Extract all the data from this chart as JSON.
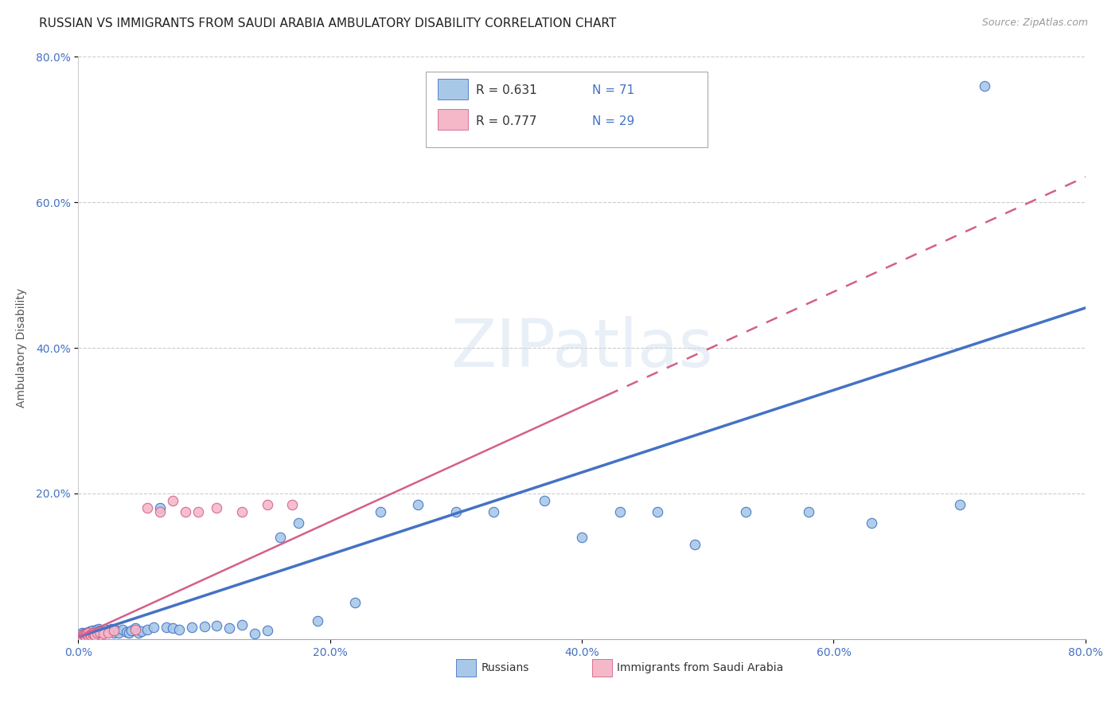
{
  "title": "RUSSIAN VS IMMIGRANTS FROM SAUDI ARABIA AMBULATORY DISABILITY CORRELATION CHART",
  "source": "Source: ZipAtlas.com",
  "ylabel": "Ambulatory Disability",
  "xlim": [
    0,
    0.8
  ],
  "ylim": [
    0,
    0.8
  ],
  "xtick_labels": [
    "0.0%",
    "20.0%",
    "40.0%",
    "60.0%",
    "80.0%"
  ],
  "xtick_vals": [
    0.0,
    0.2,
    0.4,
    0.6,
    0.8
  ],
  "ytick_labels": [
    "20.0%",
    "40.0%",
    "60.0%",
    "80.0%"
  ],
  "ytick_vals": [
    0.2,
    0.4,
    0.6,
    0.8
  ],
  "watermark": "ZIPatlas",
  "blue_color": "#a8c8e8",
  "pink_color": "#f4b8c8",
  "line_blue": "#4472c4",
  "line_pink": "#d4608a",
  "title_fontsize": 11,
  "axis_label_fontsize": 10,
  "tick_fontsize": 10,
  "legend_fontsize": 12,
  "watermark_fontsize": 60,
  "blue_x": [
    0.002,
    0.003,
    0.004,
    0.004,
    0.005,
    0.005,
    0.006,
    0.006,
    0.007,
    0.007,
    0.008,
    0.008,
    0.009,
    0.009,
    0.01,
    0.01,
    0.011,
    0.012,
    0.012,
    0.013,
    0.014,
    0.015,
    0.016,
    0.017,
    0.018,
    0.019,
    0.02,
    0.022,
    0.024,
    0.026,
    0.028,
    0.03,
    0.032,
    0.035,
    0.038,
    0.04,
    0.042,
    0.045,
    0.048,
    0.05,
    0.055,
    0.06,
    0.065,
    0.07,
    0.075,
    0.08,
    0.09,
    0.1,
    0.11,
    0.12,
    0.13,
    0.14,
    0.15,
    0.16,
    0.175,
    0.19,
    0.22,
    0.24,
    0.27,
    0.3,
    0.33,
    0.37,
    0.4,
    0.43,
    0.46,
    0.49,
    0.53,
    0.58,
    0.63,
    0.7,
    0.72
  ],
  "blue_y": [
    0.005,
    0.008,
    0.003,
    0.007,
    0.004,
    0.006,
    0.009,
    0.005,
    0.008,
    0.006,
    0.01,
    0.007,
    0.009,
    0.011,
    0.006,
    0.008,
    0.012,
    0.007,
    0.009,
    0.01,
    0.013,
    0.009,
    0.014,
    0.012,
    0.01,
    0.011,
    0.008,
    0.013,
    0.01,
    0.014,
    0.009,
    0.012,
    0.008,
    0.013,
    0.01,
    0.009,
    0.012,
    0.015,
    0.008,
    0.011,
    0.013,
    0.016,
    0.18,
    0.016,
    0.015,
    0.013,
    0.016,
    0.017,
    0.018,
    0.015,
    0.019,
    0.007,
    0.012,
    0.14,
    0.16,
    0.025,
    0.05,
    0.175,
    0.185,
    0.175,
    0.175,
    0.19,
    0.14,
    0.175,
    0.175,
    0.13,
    0.175,
    0.175,
    0.16,
    0.185,
    0.76
  ],
  "pink_x": [
    0.002,
    0.003,
    0.004,
    0.005,
    0.006,
    0.006,
    0.007,
    0.008,
    0.008,
    0.009,
    0.01,
    0.011,
    0.012,
    0.013,
    0.015,
    0.017,
    0.02,
    0.024,
    0.028,
    0.045,
    0.055,
    0.065,
    0.075,
    0.085,
    0.095,
    0.11,
    0.13,
    0.15,
    0.17
  ],
  "pink_y": [
    0.004,
    0.003,
    0.006,
    0.005,
    0.002,
    0.007,
    0.007,
    0.008,
    0.004,
    0.006,
    0.005,
    0.007,
    0.008,
    0.005,
    0.008,
    0.01,
    0.007,
    0.009,
    0.012,
    0.013,
    0.18,
    0.175,
    0.19,
    0.175,
    0.175,
    0.18,
    0.175,
    0.185,
    0.185
  ],
  "blue_trend_x": [
    0.0,
    0.8
  ],
  "blue_trend_y": [
    0.003,
    0.455
  ],
  "pink_trend_x": [
    0.0,
    0.42
  ],
  "pink_trend_y": [
    0.003,
    0.335
  ]
}
